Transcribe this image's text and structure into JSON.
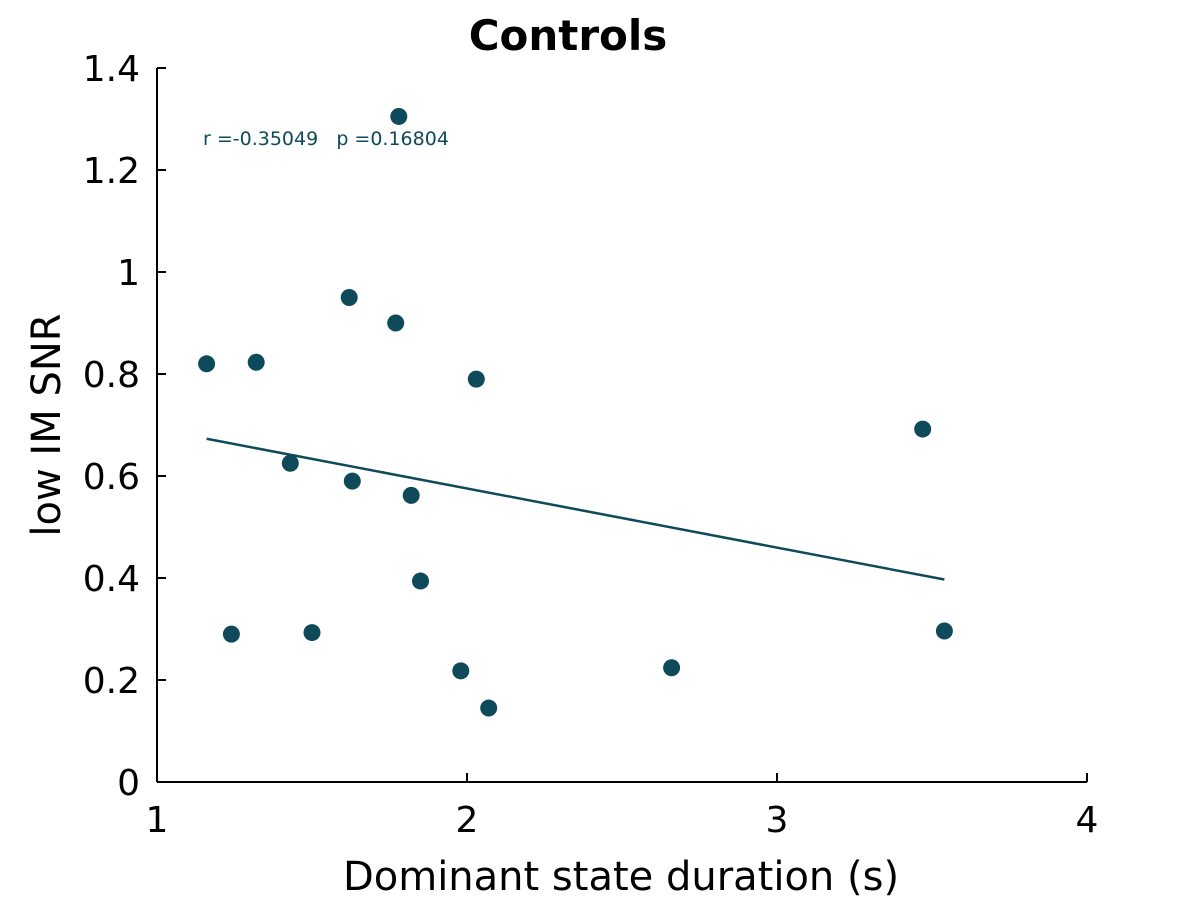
{
  "chart_data": {
    "type": "scatter",
    "title": "Controls",
    "xlabel": "Dominant state duration (s)",
    "ylabel": "low IM SNR",
    "xlim": [
      1,
      4
    ],
    "ylim": [
      0,
      1.4
    ],
    "xticks": [
      1,
      2,
      3,
      4
    ],
    "xtick_labels": [
      "1",
      "2",
      "3",
      "4"
    ],
    "yticks": [
      0,
      0.2,
      0.4,
      0.6,
      0.8,
      1.0,
      1.2,
      1.4
    ],
    "ytick_labels": [
      "0",
      "0.2",
      "0.4",
      "0.6",
      "0.8",
      "1",
      "1.2",
      "1.4"
    ],
    "grid": false,
    "color": "#0f4a5a",
    "annotation": "r =-0.35049   p =0.16804",
    "points": [
      {
        "x": 1.16,
        "y": 0.82
      },
      {
        "x": 1.24,
        "y": 0.29
      },
      {
        "x": 1.32,
        "y": 0.823
      },
      {
        "x": 1.43,
        "y": 0.625
      },
      {
        "x": 1.5,
        "y": 0.293
      },
      {
        "x": 1.62,
        "y": 0.95
      },
      {
        "x": 1.63,
        "y": 0.59
      },
      {
        "x": 1.77,
        "y": 0.9
      },
      {
        "x": 1.78,
        "y": 1.305
      },
      {
        "x": 1.82,
        "y": 0.562
      },
      {
        "x": 1.85,
        "y": 0.394
      },
      {
        "x": 1.98,
        "y": 0.218
      },
      {
        "x": 2.03,
        "y": 0.79
      },
      {
        "x": 2.07,
        "y": 0.145
      },
      {
        "x": 2.66,
        "y": 0.224
      },
      {
        "x": 3.47,
        "y": 0.692
      },
      {
        "x": 3.54,
        "y": 0.296
      }
    ],
    "fit_line": {
      "x": [
        1.16,
        3.54
      ],
      "y": [
        0.673,
        0.397
      ]
    }
  }
}
